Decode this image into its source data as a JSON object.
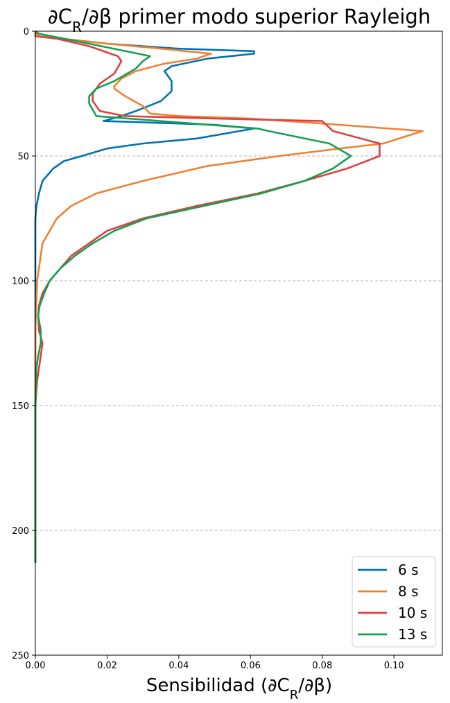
{
  "chart_data": {
    "type": "line",
    "title": "∂C_R/∂β primer modo superior Rayleigh",
    "title_parts": {
      "pre": "∂C",
      "sub": "R",
      "post": "/∂β primer modo superior Rayleigh"
    },
    "xlabel": "Sensibilidad (∂C_R/∂β)",
    "xlabel_parts": {
      "pre": "Sensibilidad (∂C",
      "sub": "R",
      "post": "/∂β)"
    },
    "ylabel": "",
    "xlim": [
      0.0,
      0.1135
    ],
    "ylim": [
      250,
      0
    ],
    "y_inverted": true,
    "xticks": [
      0.0,
      0.02,
      0.04,
      0.06,
      0.08,
      0.1
    ],
    "xtick_labels": [
      "0.00",
      "0.02",
      "0.04",
      "0.06",
      "0.08",
      "0.10"
    ],
    "yticks": [
      0,
      50,
      100,
      150,
      200,
      250
    ],
    "ytick_labels": [
      "0",
      "50",
      "100",
      "150",
      "200",
      "250"
    ],
    "grid": {
      "axis": "y",
      "style": "dashed",
      "lines_at": [
        50,
        100,
        150,
        200
      ]
    },
    "legend_placement": "lower-right",
    "series": [
      {
        "name": "6 s",
        "color": "#0072b2",
        "points": [
          [
            0.0,
            0
          ],
          [
            0.001,
            2
          ],
          [
            0.02,
            5
          ],
          [
            0.04,
            7
          ],
          [
            0.061,
            8
          ],
          [
            0.061,
            9
          ],
          [
            0.048,
            11
          ],
          [
            0.038,
            14
          ],
          [
            0.036,
            16
          ],
          [
            0.038,
            20
          ],
          [
            0.038,
            24
          ],
          [
            0.035,
            28
          ],
          [
            0.028,
            32
          ],
          [
            0.024,
            34
          ],
          [
            0.019,
            36
          ],
          [
            0.03,
            36.5
          ],
          [
            0.05,
            37.5
          ],
          [
            0.061,
            39
          ],
          [
            0.045,
            43
          ],
          [
            0.03,
            45
          ],
          [
            0.02,
            47
          ],
          [
            0.013,
            50
          ],
          [
            0.008,
            52
          ],
          [
            0.005,
            55
          ],
          [
            0.002,
            60
          ],
          [
            0.001,
            65
          ],
          [
            0.0003,
            70
          ],
          [
            0.0,
            75
          ],
          [
            0.0,
            100
          ],
          [
            0.0,
            150
          ],
          [
            0.0,
            200
          ],
          [
            0.0,
            213
          ]
        ]
      },
      {
        "name": "8 s",
        "color": "#f08030",
        "points": [
          [
            0.0,
            0
          ],
          [
            0.001,
            2
          ],
          [
            0.02,
            5
          ],
          [
            0.035,
            7
          ],
          [
            0.049,
            9
          ],
          [
            0.045,
            11
          ],
          [
            0.036,
            13
          ],
          [
            0.028,
            16
          ],
          [
            0.024,
            19
          ],
          [
            0.022,
            22
          ],
          [
            0.022,
            23
          ],
          [
            0.025,
            26
          ],
          [
            0.03,
            30
          ],
          [
            0.032,
            33
          ],
          [
            0.04,
            34
          ],
          [
            0.06,
            35
          ],
          [
            0.08,
            37
          ],
          [
            0.108,
            40
          ],
          [
            0.097,
            45
          ],
          [
            0.085,
            47
          ],
          [
            0.068,
            50
          ],
          [
            0.048,
            54
          ],
          [
            0.03,
            60
          ],
          [
            0.017,
            65
          ],
          [
            0.01,
            70
          ],
          [
            0.006,
            75
          ],
          [
            0.004,
            80
          ],
          [
            0.002,
            85
          ],
          [
            0.0005,
            100
          ],
          [
            0.0,
            120
          ],
          [
            0.0,
            150
          ],
          [
            0.0,
            200
          ],
          [
            0.0,
            213
          ]
        ]
      },
      {
        "name": "10 s",
        "color": "#e04040",
        "points": [
          [
            0.0,
            0
          ],
          [
            0.0,
            2
          ],
          [
            0.006,
            3
          ],
          [
            0.015,
            6
          ],
          [
            0.023,
            10
          ],
          [
            0.024,
            12
          ],
          [
            0.022,
            17
          ],
          [
            0.018,
            21
          ],
          [
            0.016,
            25
          ],
          [
            0.016,
            28
          ],
          [
            0.018,
            32
          ],
          [
            0.025,
            34
          ],
          [
            0.05,
            35
          ],
          [
            0.08,
            36
          ],
          [
            0.083,
            40
          ],
          [
            0.096,
            45
          ],
          [
            0.096,
            50
          ],
          [
            0.087,
            55
          ],
          [
            0.075,
            60
          ],
          [
            0.062,
            65
          ],
          [
            0.045,
            70
          ],
          [
            0.03,
            75
          ],
          [
            0.02,
            80
          ],
          [
            0.015,
            85
          ],
          [
            0.01,
            90
          ],
          [
            0.007,
            95
          ],
          [
            0.004,
            100
          ],
          [
            0.002,
            105
          ],
          [
            0.001,
            110
          ],
          [
            0.0008,
            114
          ],
          [
            0.001,
            120
          ],
          [
            0.002,
            125
          ],
          [
            0.0015,
            130
          ],
          [
            0.001,
            135
          ],
          [
            0.0005,
            140
          ],
          [
            0.0,
            150
          ],
          [
            0.0,
            200
          ],
          [
            0.0,
            213
          ]
        ]
      },
      {
        "name": "13 s",
        "color": "#15a050",
        "points": [
          [
            0.0,
            0
          ],
          [
            0.001,
            1
          ],
          [
            0.015,
            5
          ],
          [
            0.032,
            10
          ],
          [
            0.03,
            12
          ],
          [
            0.028,
            15
          ],
          [
            0.022,
            20
          ],
          [
            0.017,
            23
          ],
          [
            0.015,
            26
          ],
          [
            0.015,
            29
          ],
          [
            0.017,
            34
          ],
          [
            0.062,
            39
          ],
          [
            0.065,
            40
          ],
          [
            0.082,
            45
          ],
          [
            0.088,
            50
          ],
          [
            0.083,
            55
          ],
          [
            0.075,
            60
          ],
          [
            0.063,
            65
          ],
          [
            0.047,
            70
          ],
          [
            0.031,
            75
          ],
          [
            0.022,
            80
          ],
          [
            0.016,
            85
          ],
          [
            0.011,
            90
          ],
          [
            0.007,
            95
          ],
          [
            0.004,
            100
          ],
          [
            0.0025,
            105
          ],
          [
            0.0012,
            110
          ],
          [
            0.0008,
            114
          ],
          [
            0.0015,
            120
          ],
          [
            0.0015,
            125
          ],
          [
            0.0008,
            130
          ],
          [
            0.0003,
            135
          ],
          [
            0.0,
            150
          ],
          [
            0.0,
            200
          ],
          [
            0.0,
            213
          ]
        ]
      }
    ]
  }
}
